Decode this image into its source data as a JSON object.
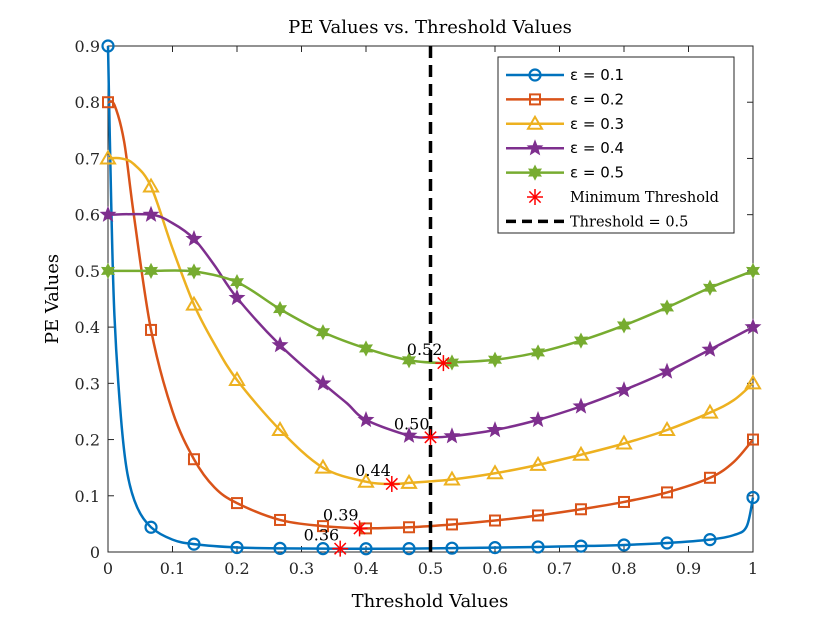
{
  "chart_data": {
    "type": "line",
    "title": "PE Values vs. Threshold Values",
    "xlabel": "Threshold Values",
    "ylabel": "PE Values",
    "xlim": [
      0,
      1
    ],
    "ylim": [
      0,
      0.9
    ],
    "xticks": [
      0,
      0.1,
      0.2,
      0.3,
      0.4,
      0.5,
      0.6,
      0.7,
      0.8,
      0.9,
      1
    ],
    "xtick_labels": [
      "0",
      "0.1",
      "0.2",
      "0.3",
      "0.4",
      "0.5",
      "0.6",
      "0.7",
      "0.8",
      "0.9",
      "1"
    ],
    "yticks": [
      0,
      0.1,
      0.2,
      0.3,
      0.4,
      0.5,
      0.6,
      0.7,
      0.8,
      0.9
    ],
    "ytick_labels": [
      "0",
      "0.1",
      "0.2",
      "0.3",
      "0.4",
      "0.5",
      "0.6",
      "0.7",
      "0.8",
      "0.9"
    ],
    "grid": false,
    "legend_position": "top-right",
    "marker_x": [
      0,
      0.0667,
      0.1333,
      0.2,
      0.2667,
      0.3333,
      0.4,
      0.4667,
      0.5333,
      0.6,
      0.6667,
      0.7333,
      0.8,
      0.8667,
      0.9333,
      1
    ],
    "series": [
      {
        "name": "ε = 0.1",
        "color": "#0072BD",
        "marker": "circle",
        "curve": [
          [
            0,
            0.9
          ],
          [
            0.005,
            0.62
          ],
          [
            0.01,
            0.42
          ],
          [
            0.02,
            0.24
          ],
          [
            0.03,
            0.14
          ],
          [
            0.045,
            0.08
          ],
          [
            0.0667,
            0.044
          ],
          [
            0.1,
            0.022
          ],
          [
            0.1333,
            0.014
          ],
          [
            0.2,
            0.008
          ],
          [
            0.2667,
            0.0065
          ],
          [
            0.3333,
            0.006
          ],
          [
            0.4,
            0.0058
          ],
          [
            0.4667,
            0.006
          ],
          [
            0.5333,
            0.0068
          ],
          [
            0.6,
            0.0078
          ],
          [
            0.6667,
            0.009
          ],
          [
            0.7333,
            0.0105
          ],
          [
            0.8,
            0.0125
          ],
          [
            0.8667,
            0.016
          ],
          [
            0.9333,
            0.022
          ],
          [
            0.97,
            0.03
          ],
          [
            0.99,
            0.045
          ],
          [
            1,
            0.097
          ]
        ],
        "markers": [
          0.9,
          0.044,
          0.014,
          0.008,
          0.0065,
          0.006,
          0.0058,
          0.006,
          0.0068,
          0.0078,
          0.009,
          0.0105,
          0.0125,
          0.016,
          0.022,
          0.097
        ]
      },
      {
        "name": "ε = 0.2",
        "color": "#D95319",
        "marker": "square",
        "curve": [
          [
            0,
            0.8
          ],
          [
            0.01,
            0.795
          ],
          [
            0.025,
            0.73
          ],
          [
            0.04,
            0.6
          ],
          [
            0.0667,
            0.395
          ],
          [
            0.1,
            0.25
          ],
          [
            0.1333,
            0.165
          ],
          [
            0.165,
            0.115
          ],
          [
            0.2,
            0.087
          ],
          [
            0.2667,
            0.057
          ],
          [
            0.3333,
            0.046
          ],
          [
            0.39,
            0.042
          ],
          [
            0.4,
            0.042
          ],
          [
            0.4667,
            0.044
          ],
          [
            0.5333,
            0.049
          ],
          [
            0.6,
            0.056
          ],
          [
            0.6667,
            0.065
          ],
          [
            0.7333,
            0.076
          ],
          [
            0.8,
            0.089
          ],
          [
            0.8667,
            0.106
          ],
          [
            0.9333,
            0.132
          ],
          [
            0.97,
            0.16
          ],
          [
            1,
            0.2
          ]
        ],
        "markers": [
          0.8,
          0.395,
          0.165,
          0.087,
          0.057,
          0.046,
          0.042,
          0.044,
          0.049,
          0.056,
          0.065,
          0.076,
          0.089,
          0.106,
          0.132,
          0.2
        ]
      },
      {
        "name": "ε = 0.3",
        "color": "#EDB120",
        "marker": "triangle",
        "curve": [
          [
            0,
            0.7
          ],
          [
            0.02,
            0.7
          ],
          [
            0.04,
            0.69
          ],
          [
            0.0667,
            0.65
          ],
          [
            0.1,
            0.54
          ],
          [
            0.1333,
            0.44
          ],
          [
            0.165,
            0.37
          ],
          [
            0.2,
            0.306
          ],
          [
            0.2667,
            0.217
          ],
          [
            0.3333,
            0.15
          ],
          [
            0.4,
            0.125
          ],
          [
            0.44,
            0.121
          ],
          [
            0.4667,
            0.123
          ],
          [
            0.5333,
            0.129
          ],
          [
            0.6,
            0.14
          ],
          [
            0.6667,
            0.155
          ],
          [
            0.7333,
            0.173
          ],
          [
            0.8,
            0.193
          ],
          [
            0.8667,
            0.217
          ],
          [
            0.9333,
            0.248
          ],
          [
            0.97,
            0.27
          ],
          [
            1,
            0.3
          ]
        ],
        "markers": [
          0.7,
          0.65,
          0.44,
          0.306,
          0.217,
          0.15,
          0.125,
          0.123,
          0.129,
          0.14,
          0.155,
          0.173,
          0.193,
          0.217,
          0.248,
          0.3
        ]
      },
      {
        "name": "ε = 0.4",
        "color": "#7E2F8E",
        "marker": "star",
        "curve": [
          [
            0,
            0.6
          ],
          [
            0.0667,
            0.6
          ],
          [
            0.1,
            0.585
          ],
          [
            0.1333,
            0.557
          ],
          [
            0.165,
            0.51
          ],
          [
            0.2,
            0.452
          ],
          [
            0.2667,
            0.368
          ],
          [
            0.3333,
            0.3
          ],
          [
            0.37,
            0.265
          ],
          [
            0.4,
            0.235
          ],
          [
            0.4667,
            0.207
          ],
          [
            0.5,
            0.204
          ],
          [
            0.5333,
            0.206
          ],
          [
            0.6,
            0.217
          ],
          [
            0.6667,
            0.235
          ],
          [
            0.7333,
            0.259
          ],
          [
            0.8,
            0.288
          ],
          [
            0.8667,
            0.321
          ],
          [
            0.9333,
            0.36
          ],
          [
            1,
            0.4
          ]
        ],
        "markers": [
          0.6,
          0.6,
          0.557,
          0.452,
          0.368,
          0.3,
          0.235,
          0.207,
          0.206,
          0.217,
          0.235,
          0.259,
          0.288,
          0.321,
          0.36,
          0.4
        ]
      },
      {
        "name": "ε = 0.5",
        "color": "#77AC30",
        "marker": "hexagram",
        "curve": [
          [
            0,
            0.5
          ],
          [
            0.0667,
            0.5
          ],
          [
            0.1333,
            0.499
          ],
          [
            0.2,
            0.48
          ],
          [
            0.2667,
            0.432
          ],
          [
            0.3333,
            0.391
          ],
          [
            0.4,
            0.362
          ],
          [
            0.4667,
            0.341
          ],
          [
            0.52,
            0.336
          ],
          [
            0.5333,
            0.337
          ],
          [
            0.6,
            0.342
          ],
          [
            0.6667,
            0.355
          ],
          [
            0.7333,
            0.376
          ],
          [
            0.8,
            0.403
          ],
          [
            0.8667,
            0.435
          ],
          [
            0.9333,
            0.47
          ],
          [
            1,
            0.5
          ]
        ],
        "markers": [
          0.5,
          0.5,
          0.499,
          0.48,
          0.432,
          0.391,
          0.362,
          0.341,
          0.337,
          0.342,
          0.355,
          0.376,
          0.403,
          0.435,
          0.47,
          0.5
        ]
      }
    ],
    "minimum_threshold": {
      "name": "Minimum Threshold",
      "color": "#FF0000",
      "points": [
        {
          "x": 0.36,
          "y": 0.006,
          "label": "0.36"
        },
        {
          "x": 0.39,
          "y": 0.042,
          "label": "0.39"
        },
        {
          "x": 0.44,
          "y": 0.121,
          "label": "0.44"
        },
        {
          "x": 0.5,
          "y": 0.204,
          "label": "0.50"
        },
        {
          "x": 0.52,
          "y": 0.336,
          "label": "0.52"
        }
      ]
    },
    "reference_line": {
      "name": "Threshold = 0.5",
      "x": 0.5,
      "color": "#000000"
    }
  }
}
